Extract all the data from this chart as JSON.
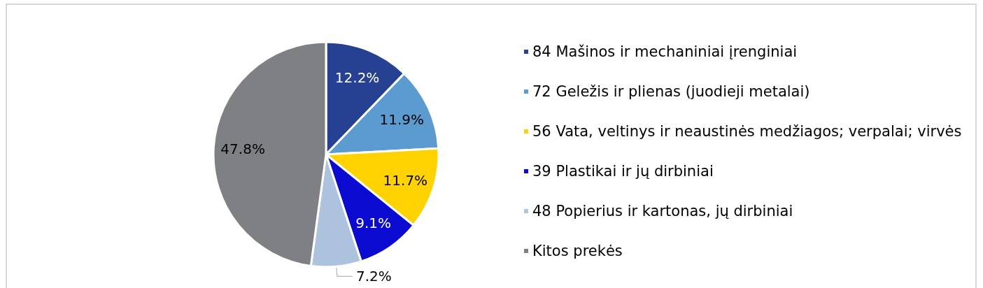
{
  "chart_data": {
    "type": "pie",
    "categories": [
      "84 Mašinos ir mechaniniai įrenginiai",
      "72 Geležis ir plienas (juodieji metalai)",
      "56 Vata, veltinys ir neaustinės medžiagos; verpalai; virvės",
      "39 Plastikai ir jų dirbiniai",
      "48 Popierius ir kartonas, jų dirbiniai",
      "Kitos prekės"
    ],
    "values": [
      12.2,
      11.9,
      11.7,
      9.1,
      7.2,
      47.8
    ],
    "colors": [
      "#264191",
      "#5b9bd0",
      "#ffd200",
      "#0a0ad0",
      "#adc3dd",
      "#7f8084"
    ],
    "value_labels": [
      "12.2%",
      "11.9%",
      "11.7%",
      "9.1%",
      "7.2%",
      "47.8%"
    ],
    "legend": "right"
  }
}
